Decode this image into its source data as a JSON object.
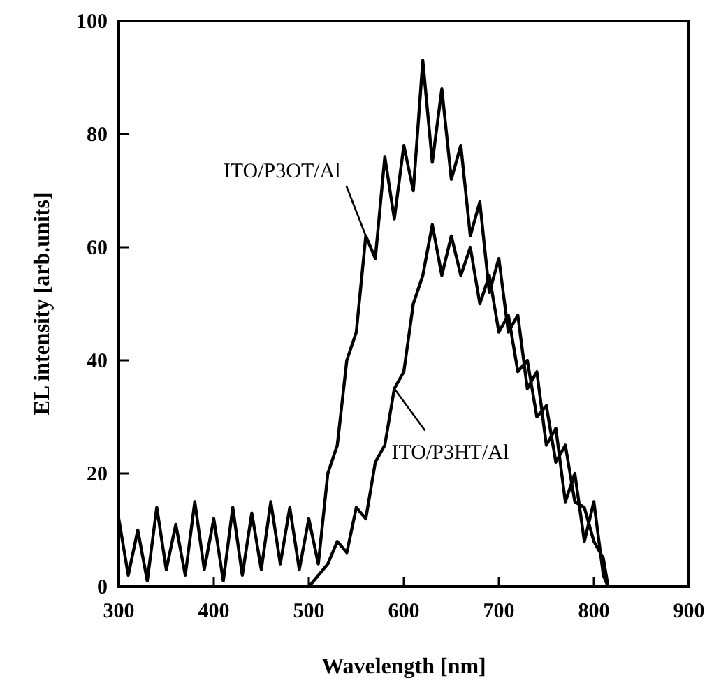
{
  "chart_data": {
    "type": "line",
    "xlabel": "Wavelength [nm]",
    "ylabel": "EL intensity [arb.units]",
    "xlim": [
      300,
      900
    ],
    "ylim": [
      0,
      100
    ],
    "xticks": [
      300,
      400,
      500,
      600,
      700,
      800,
      900
    ],
    "yticks": [
      0,
      20,
      40,
      60,
      80,
      100
    ],
    "grid": false,
    "marker": "none",
    "line_style": "solid",
    "series": [
      {
        "name": "ITO/P3OT/Al",
        "color": "#000000",
        "x": [
          300,
          310,
          320,
          330,
          340,
          350,
          360,
          370,
          380,
          390,
          400,
          410,
          420,
          430,
          440,
          450,
          460,
          470,
          480,
          490,
          500,
          510,
          520,
          530,
          540,
          550,
          560,
          570,
          580,
          590,
          600,
          610,
          620,
          630,
          640,
          650,
          660,
          670,
          680,
          690,
          700,
          710,
          720,
          730,
          740,
          750,
          760,
          770,
          780,
          790,
          800,
          810,
          815
        ],
        "values": [
          12,
          2,
          10,
          1,
          14,
          3,
          11,
          2,
          15,
          3,
          12,
          1,
          14,
          2,
          13,
          3,
          15,
          4,
          14,
          3,
          12,
          4,
          20,
          25,
          40,
          45,
          62,
          58,
          76,
          65,
          78,
          70,
          93,
          75,
          88,
          72,
          78,
          62,
          68,
          52,
          58,
          45,
          48,
          35,
          38,
          25,
          28,
          15,
          20,
          8,
          15,
          2,
          0
        ]
      },
      {
        "name": "ITO/P3HT/Al",
        "color": "#000000",
        "x": [
          500,
          510,
          520,
          530,
          540,
          550,
          560,
          570,
          580,
          590,
          600,
          610,
          620,
          630,
          640,
          650,
          660,
          670,
          680,
          690,
          700,
          710,
          720,
          730,
          740,
          750,
          760,
          770,
          780,
          790,
          800,
          810,
          815
        ],
        "values": [
          0,
          2,
          4,
          8,
          6,
          14,
          12,
          22,
          25,
          35,
          38,
          50,
          55,
          64,
          55,
          62,
          55,
          60,
          50,
          55,
          45,
          48,
          38,
          40,
          30,
          32,
          22,
          25,
          15,
          14,
          8,
          5,
          0
        ]
      }
    ]
  }
}
